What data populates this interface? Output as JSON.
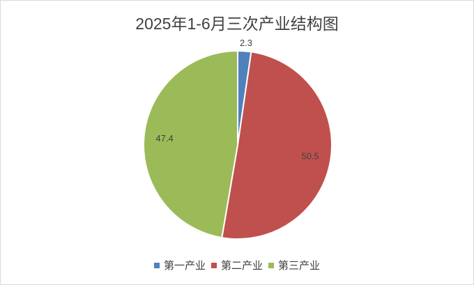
{
  "chart_data": {
    "type": "pie",
    "title": "2025年1-6月三次产业结构图",
    "categories": [
      "第一产业",
      "第二产业",
      "第三产业"
    ],
    "values": [
      2.3,
      50.5,
      47.4
    ],
    "colors": [
      "#4f81bd",
      "#c0504d",
      "#9bbb59"
    ],
    "data_labels": [
      "2.3",
      "50.5",
      "47.4"
    ],
    "start_angle": "top, clockwise",
    "legend_position": "bottom"
  }
}
